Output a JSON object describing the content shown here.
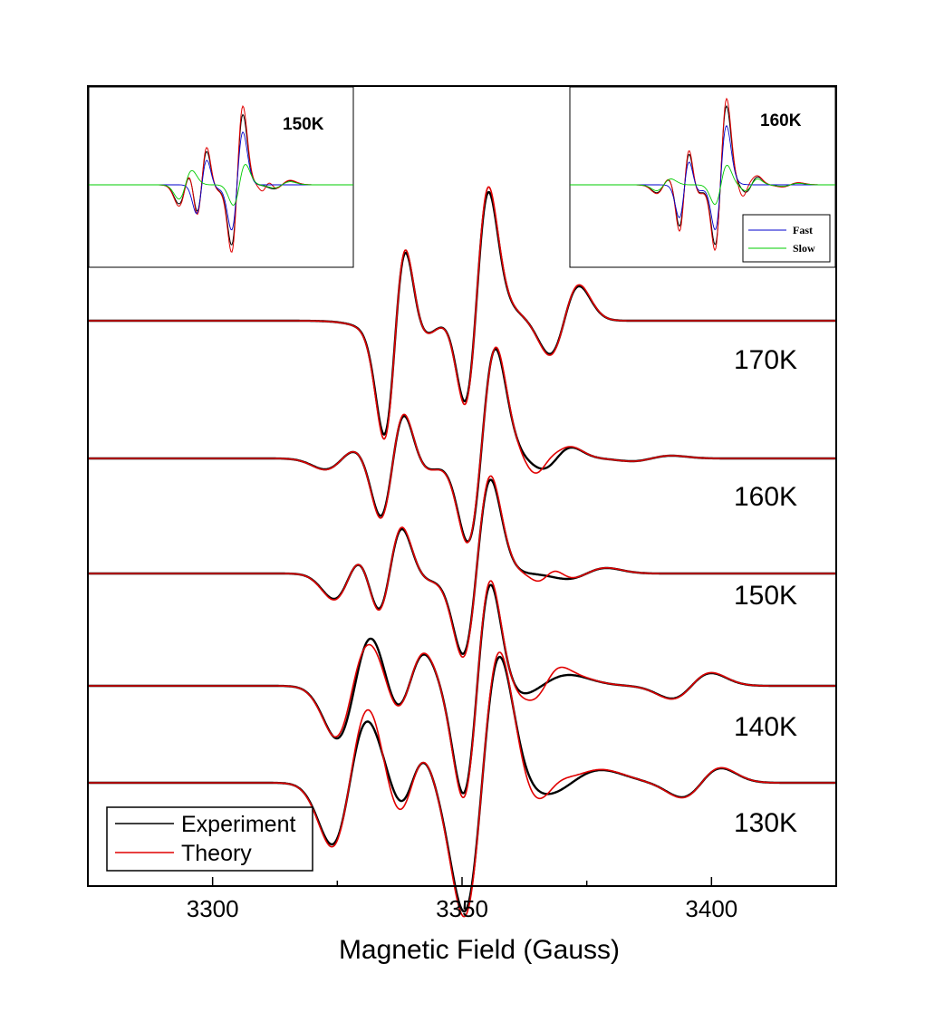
{
  "chart_data": {
    "type": "line",
    "title": "",
    "xlabel": "Magnetic Field (Gauss)",
    "ylabel": "",
    "xlim": [
      3275,
      3425
    ],
    "xticks": [
      {
        "value": 3300,
        "label": "3300"
      },
      {
        "value": 3350,
        "label": "3350"
      },
      {
        "value": 3400,
        "label": "3400"
      }
    ],
    "legend": {
      "placement": "bottom-left",
      "entries": [
        {
          "name": "Experiment",
          "color": "#000000"
        },
        {
          "name": "Theory",
          "color": "#e00000"
        }
      ]
    },
    "colors": {
      "experiment": "#000000",
      "theory": "#e00000",
      "fast": "#0000cc",
      "slow": "#00cc00"
    },
    "spectra": [
      {
        "temperature": "170K",
        "baseline": 0,
        "theory_extra": [],
        "components": [
          {
            "type": "deriv",
            "center": 3336.5,
            "width": 2.2,
            "amp": 105
          },
          {
            "type": "deriv",
            "center": 3353.0,
            "width": 2.4,
            "amp": 115
          },
          {
            "type": "deriv",
            "center": 3370.5,
            "width": 3.0,
            "amp": 38
          },
          {
            "type": "deriv",
            "center": 3346.0,
            "width": 7.0,
            "amp": 30
          }
        ]
      },
      {
        "temperature": "160K",
        "baseline": 0,
        "theory_extra": [
          {
            "type": "deriv",
            "center": 3366.0,
            "width": 2.0,
            "amp": 8
          },
          {
            "type": "deriv",
            "center": 3354.0,
            "width": 1.5,
            "amp": -5
          }
        ],
        "components": [
          {
            "type": "deriv",
            "center": 3326.0,
            "width": 3.5,
            "amp": 12
          },
          {
            "type": "deriv",
            "center": 3336.0,
            "width": 2.5,
            "amp": 62
          },
          {
            "type": "deriv",
            "center": 3354.0,
            "width": 2.8,
            "amp": 108
          },
          {
            "type": "deriv",
            "center": 3347.0,
            "width": 6.0,
            "amp": 18
          },
          {
            "type": "deriv",
            "center": 3369.0,
            "width": 3.0,
            "amp": 12
          },
          {
            "type": "deriv",
            "center": 3388.0,
            "width": 4.0,
            "amp": 3
          }
        ]
      },
      {
        "temperature": "150K",
        "baseline": 0,
        "theory_extra": [
          {
            "type": "deriv",
            "center": 3367.0,
            "width": 2.0,
            "amp": 7
          }
        ],
        "components": [
          {
            "type": "deriv",
            "center": 3327.5,
            "width": 3.2,
            "amp": 28
          },
          {
            "type": "deriv",
            "center": 3335.5,
            "width": 2.6,
            "amp": 55
          },
          {
            "type": "deriv",
            "center": 3353.0,
            "width": 2.8,
            "amp": 98
          },
          {
            "type": "deriv",
            "center": 3346.5,
            "width": 5.0,
            "amp": 10
          },
          {
            "type": "deriv",
            "center": 3375.0,
            "width": 4.0,
            "amp": 6
          }
        ]
      },
      {
        "temperature": "140K",
        "baseline": 0,
        "theory_extra": [
          {
            "type": "deriv",
            "center": 3330.0,
            "width": 2.5,
            "amp": -10
          },
          {
            "type": "deriv",
            "center": 3367.0,
            "width": 2.5,
            "amp": 9
          }
        ],
        "components": [
          {
            "type": "deriv",
            "center": 3328.5,
            "width": 3.6,
            "amp": 58
          },
          {
            "type": "deriv",
            "center": 3339.5,
            "width": 3.0,
            "amp": 35
          },
          {
            "type": "deriv",
            "center": 3353.0,
            "width": 2.8,
            "amp": 118
          },
          {
            "type": "deriv",
            "center": 3366.0,
            "width": 5.5,
            "amp": 12
          },
          {
            "type": "deriv",
            "center": 3396.0,
            "width": 4.0,
            "amp": 14
          }
        ]
      },
      {
        "temperature": "130K",
        "baseline": 0,
        "theory_extra": [
          {
            "type": "deriv",
            "center": 3334.0,
            "width": 2.5,
            "amp": -10
          },
          {
            "type": "deriv",
            "center": 3367.0,
            "width": 3.0,
            "amp": 10
          }
        ],
        "components": [
          {
            "type": "deriv",
            "center": 3327.5,
            "width": 3.6,
            "amp": 68
          },
          {
            "type": "deriv",
            "center": 3340.0,
            "width": 2.6,
            "amp": 26
          },
          {
            "type": "deriv",
            "center": 3354.0,
            "width": 3.6,
            "amp": 142
          },
          {
            "type": "deriv",
            "center": 3372.0,
            "width": 6.0,
            "amp": 14
          },
          {
            "type": "deriv",
            "center": 3398.0,
            "width": 4.0,
            "amp": 16
          }
        ]
      }
    ],
    "insets": [
      {
        "temperature": "150K",
        "placement": "top-left",
        "legend": []
      },
      {
        "temperature": "160K",
        "placement": "top-right",
        "legend": [
          {
            "name": "Fast",
            "color": "#0000cc"
          },
          {
            "name": "Slow",
            "color": "#00cc00"
          }
        ]
      }
    ]
  }
}
